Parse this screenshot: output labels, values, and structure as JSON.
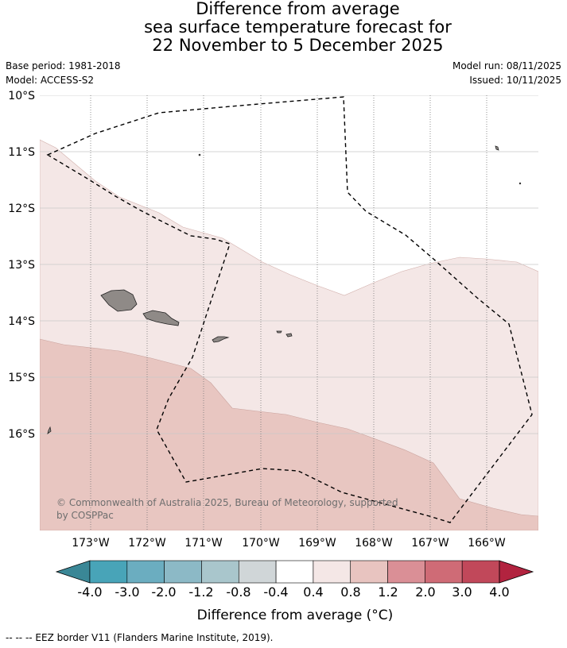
{
  "title": {
    "line1": "Difference from average",
    "line2": "sea surface temperature forecast for",
    "line3": "22 November to 5 December 2025"
  },
  "meta": {
    "base_period": "Base period: 1981-2018",
    "model": "Model: ACCESS-S2",
    "model_run": "Model run: 08/11/2025",
    "issued": "Issued: 10/11/2025"
  },
  "map": {
    "lat_labels": [
      "10°S",
      "11°S",
      "12°S",
      "13°S",
      "14°S",
      "15°S",
      "16°S"
    ],
    "lon_labels": [
      "173°W",
      "172°W",
      "171°W",
      "170°W",
      "169°W",
      "168°W",
      "167°W",
      "166°W"
    ],
    "copyright_line1": "© Commonwealth of Australia 2025, Bureau of Meteorology, supported",
    "copyright_line2": "by COSPPac"
  },
  "colorbar": {
    "label": "Difference from average (°C)",
    "ticks": [
      "-4.0",
      "-3.0",
      "-2.0",
      "-1.2",
      "-0.8",
      "-0.4",
      "0.4",
      "0.8",
      "1.2",
      "2.0",
      "3.0",
      "4.0"
    ],
    "colors": [
      "#3a8796",
      "#48a4b8",
      "#6badc0",
      "#8cb9c6",
      "#a9c6cc",
      "#d0d6d8",
      "#ffffff",
      "#f4e7e6",
      "#e8c4c0",
      "#da8f96",
      "#cf6b76",
      "#c1485a",
      "#b2233f"
    ]
  },
  "footer": "--  --  -- EEZ border V11 (Flanders Marine Institute, 2019)."
}
